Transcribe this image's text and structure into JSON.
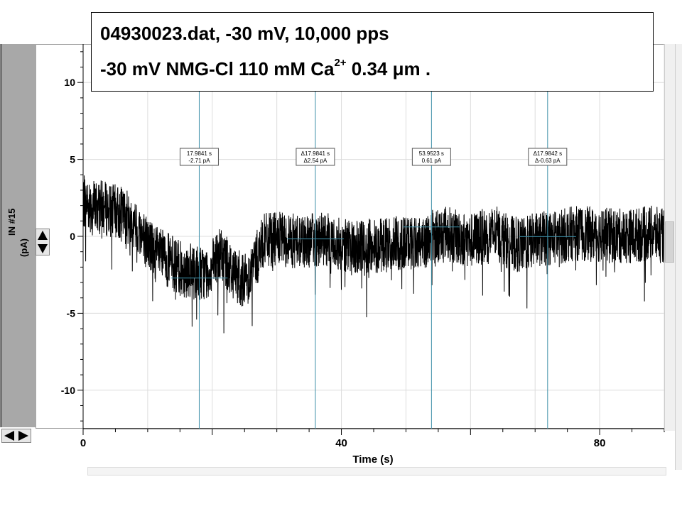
{
  "title": {
    "line1": "04930023.dat, -30 mV, 10,000 pps",
    "line2_pre": "-30 mV NMG-Cl 110 mM Ca",
    "line2_sup": "2+",
    "line2_post": " 0.34 μm ."
  },
  "channel": {
    "name": "IN #15",
    "unit": "(pA)"
  },
  "controls": {
    "up_down_icon": "up-down-arrows-icon",
    "left_right_icon": "left-right-arrows-icon"
  },
  "chart_data": {
    "type": "line",
    "xlabel": "Time (s)",
    "ylabel": "IN #15 (pA)",
    "xlim": [
      0,
      90
    ],
    "ylim": [
      -12.5,
      12.5
    ],
    "xticks": [
      0,
      40,
      80
    ],
    "yticks": [
      10,
      5,
      0,
      -5,
      -10
    ],
    "xticks_minor": [
      10,
      20,
      30,
      50,
      60,
      70,
      90
    ],
    "trace_color": "#000000",
    "cursor_color": "#3d8fa8",
    "series": [
      {
        "baseline": [
          [
            0,
            2.2
          ],
          [
            5,
            1.6
          ],
          [
            7,
            1.2
          ],
          [
            8,
            0.6
          ],
          [
            9,
            0.2
          ],
          [
            10,
            -0.4
          ],
          [
            11,
            -0.9
          ],
          [
            12,
            -1.3
          ],
          [
            13,
            -1.5
          ],
          [
            15,
            -2.1
          ],
          [
            17,
            -2.3
          ],
          [
            19,
            -2.4
          ],
          [
            20,
            -2.0
          ],
          [
            21,
            -1.2
          ],
          [
            22,
            -1.5
          ],
          [
            23,
            -2.2
          ],
          [
            24,
            -2.6
          ],
          [
            25,
            -2.9
          ],
          [
            26,
            -2.3
          ],
          [
            27,
            -1.3
          ],
          [
            28,
            -0.3
          ],
          [
            30,
            -0.2
          ],
          [
            33,
            -0.3
          ],
          [
            37,
            -0.2
          ],
          [
            40,
            -0.5
          ],
          [
            42,
            -0.8
          ],
          [
            45,
            -0.6
          ],
          [
            48,
            -0.5
          ],
          [
            50,
            -0.4
          ],
          [
            53,
            -0.3
          ],
          [
            56,
            0.3
          ],
          [
            58,
            -0.1
          ],
          [
            60,
            -0.3
          ],
          [
            62,
            0.0
          ],
          [
            64,
            0.2
          ],
          [
            66,
            -0.4
          ],
          [
            68,
            -0.6
          ],
          [
            70,
            -0.2
          ],
          [
            73,
            -0.1
          ],
          [
            76,
            0.2
          ],
          [
            80,
            0.1
          ],
          [
            84,
            0.0
          ],
          [
            88,
            0.2
          ],
          [
            90,
            0.0
          ]
        ],
        "noise_amplitude_pA": 1.8
      }
    ],
    "cursors": [
      {
        "x": 17.9841,
        "label_line1": "17.9841 s",
        "label_line2": "-2.71 pA",
        "level": -2.71
      },
      {
        "x": 35.9682,
        "label_line1": "Δ17.9841 s",
        "label_line2": "Δ2.54 pA",
        "level": -0.17
      },
      {
        "x": 53.9523,
        "label_line1": "53.9523 s",
        "label_line2": "0.61 pA",
        "level": 0.61
      },
      {
        "x": 71.9365,
        "label_line1": "Δ17.9842 s",
        "label_line2": "Δ-0.63 pA",
        "level": -0.02
      }
    ]
  }
}
